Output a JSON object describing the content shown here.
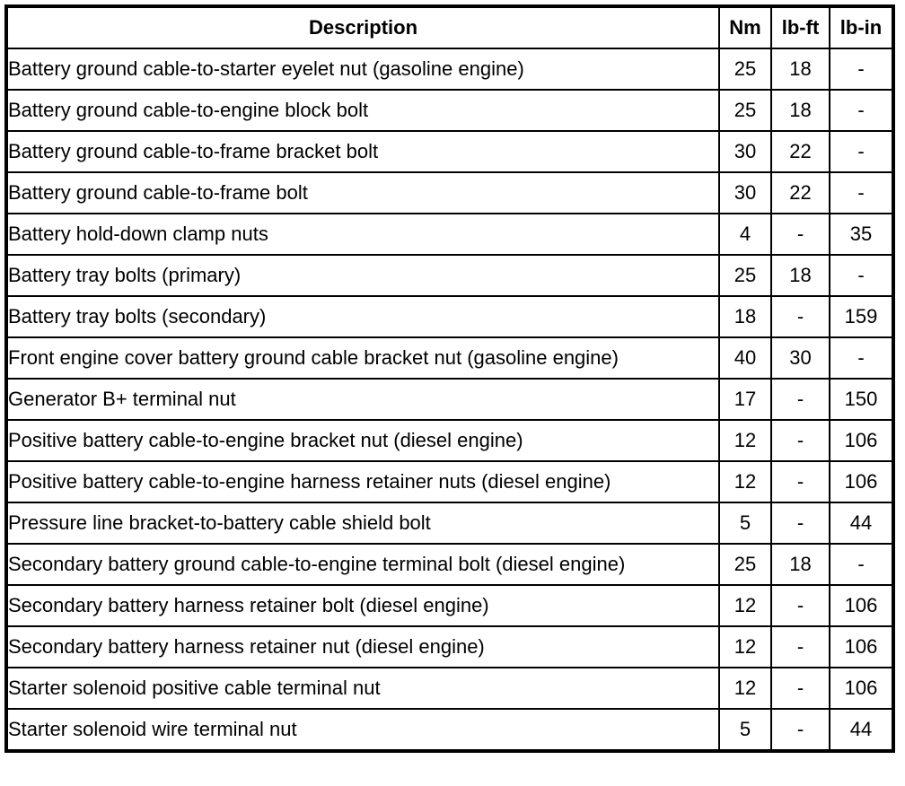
{
  "table": {
    "columns": [
      "Description",
      "Nm",
      "lb-ft",
      "lb-in"
    ],
    "rows": [
      [
        "Battery ground cable-to-starter eyelet nut (gasoline engine)",
        "25",
        "18",
        "-"
      ],
      [
        "Battery ground cable-to-engine block bolt",
        "25",
        "18",
        "-"
      ],
      [
        "Battery ground cable-to-frame bracket bolt",
        "30",
        "22",
        "-"
      ],
      [
        "Battery ground cable-to-frame bolt",
        "30",
        "22",
        "-"
      ],
      [
        "Battery hold-down clamp nuts",
        "4",
        "-",
        "35"
      ],
      [
        "Battery tray bolts (primary)",
        "25",
        "18",
        "-"
      ],
      [
        "Battery tray bolts (secondary)",
        "18",
        "-",
        "159"
      ],
      [
        "Front engine cover battery ground cable bracket nut (gasoline engine)",
        "40",
        "30",
        "-"
      ],
      [
        "Generator B+ terminal nut",
        "17",
        "-",
        "150"
      ],
      [
        "Positive battery cable-to-engine bracket nut (diesel engine)",
        "12",
        "-",
        "106"
      ],
      [
        "Positive battery cable-to-engine harness retainer nuts (diesel engine)",
        "12",
        "-",
        "106"
      ],
      [
        "Pressure line bracket-to-battery cable shield bolt",
        "5",
        "-",
        "44"
      ],
      [
        "Secondary battery ground cable-to-engine terminal bolt (diesel engine)",
        "25",
        "18",
        "-"
      ],
      [
        "Secondary battery harness retainer bolt (diesel engine)",
        "12",
        "-",
        "106"
      ],
      [
        "Secondary battery harness retainer nut (diesel engine)",
        "12",
        "-",
        "106"
      ],
      [
        "Starter solenoid positive cable terminal nut",
        "12",
        "-",
        "106"
      ],
      [
        "Starter solenoid wire terminal nut",
        "5",
        "-",
        "44"
      ]
    ],
    "colors": {
      "border": "#000000",
      "background": "#ffffff",
      "text": "#000000"
    }
  }
}
